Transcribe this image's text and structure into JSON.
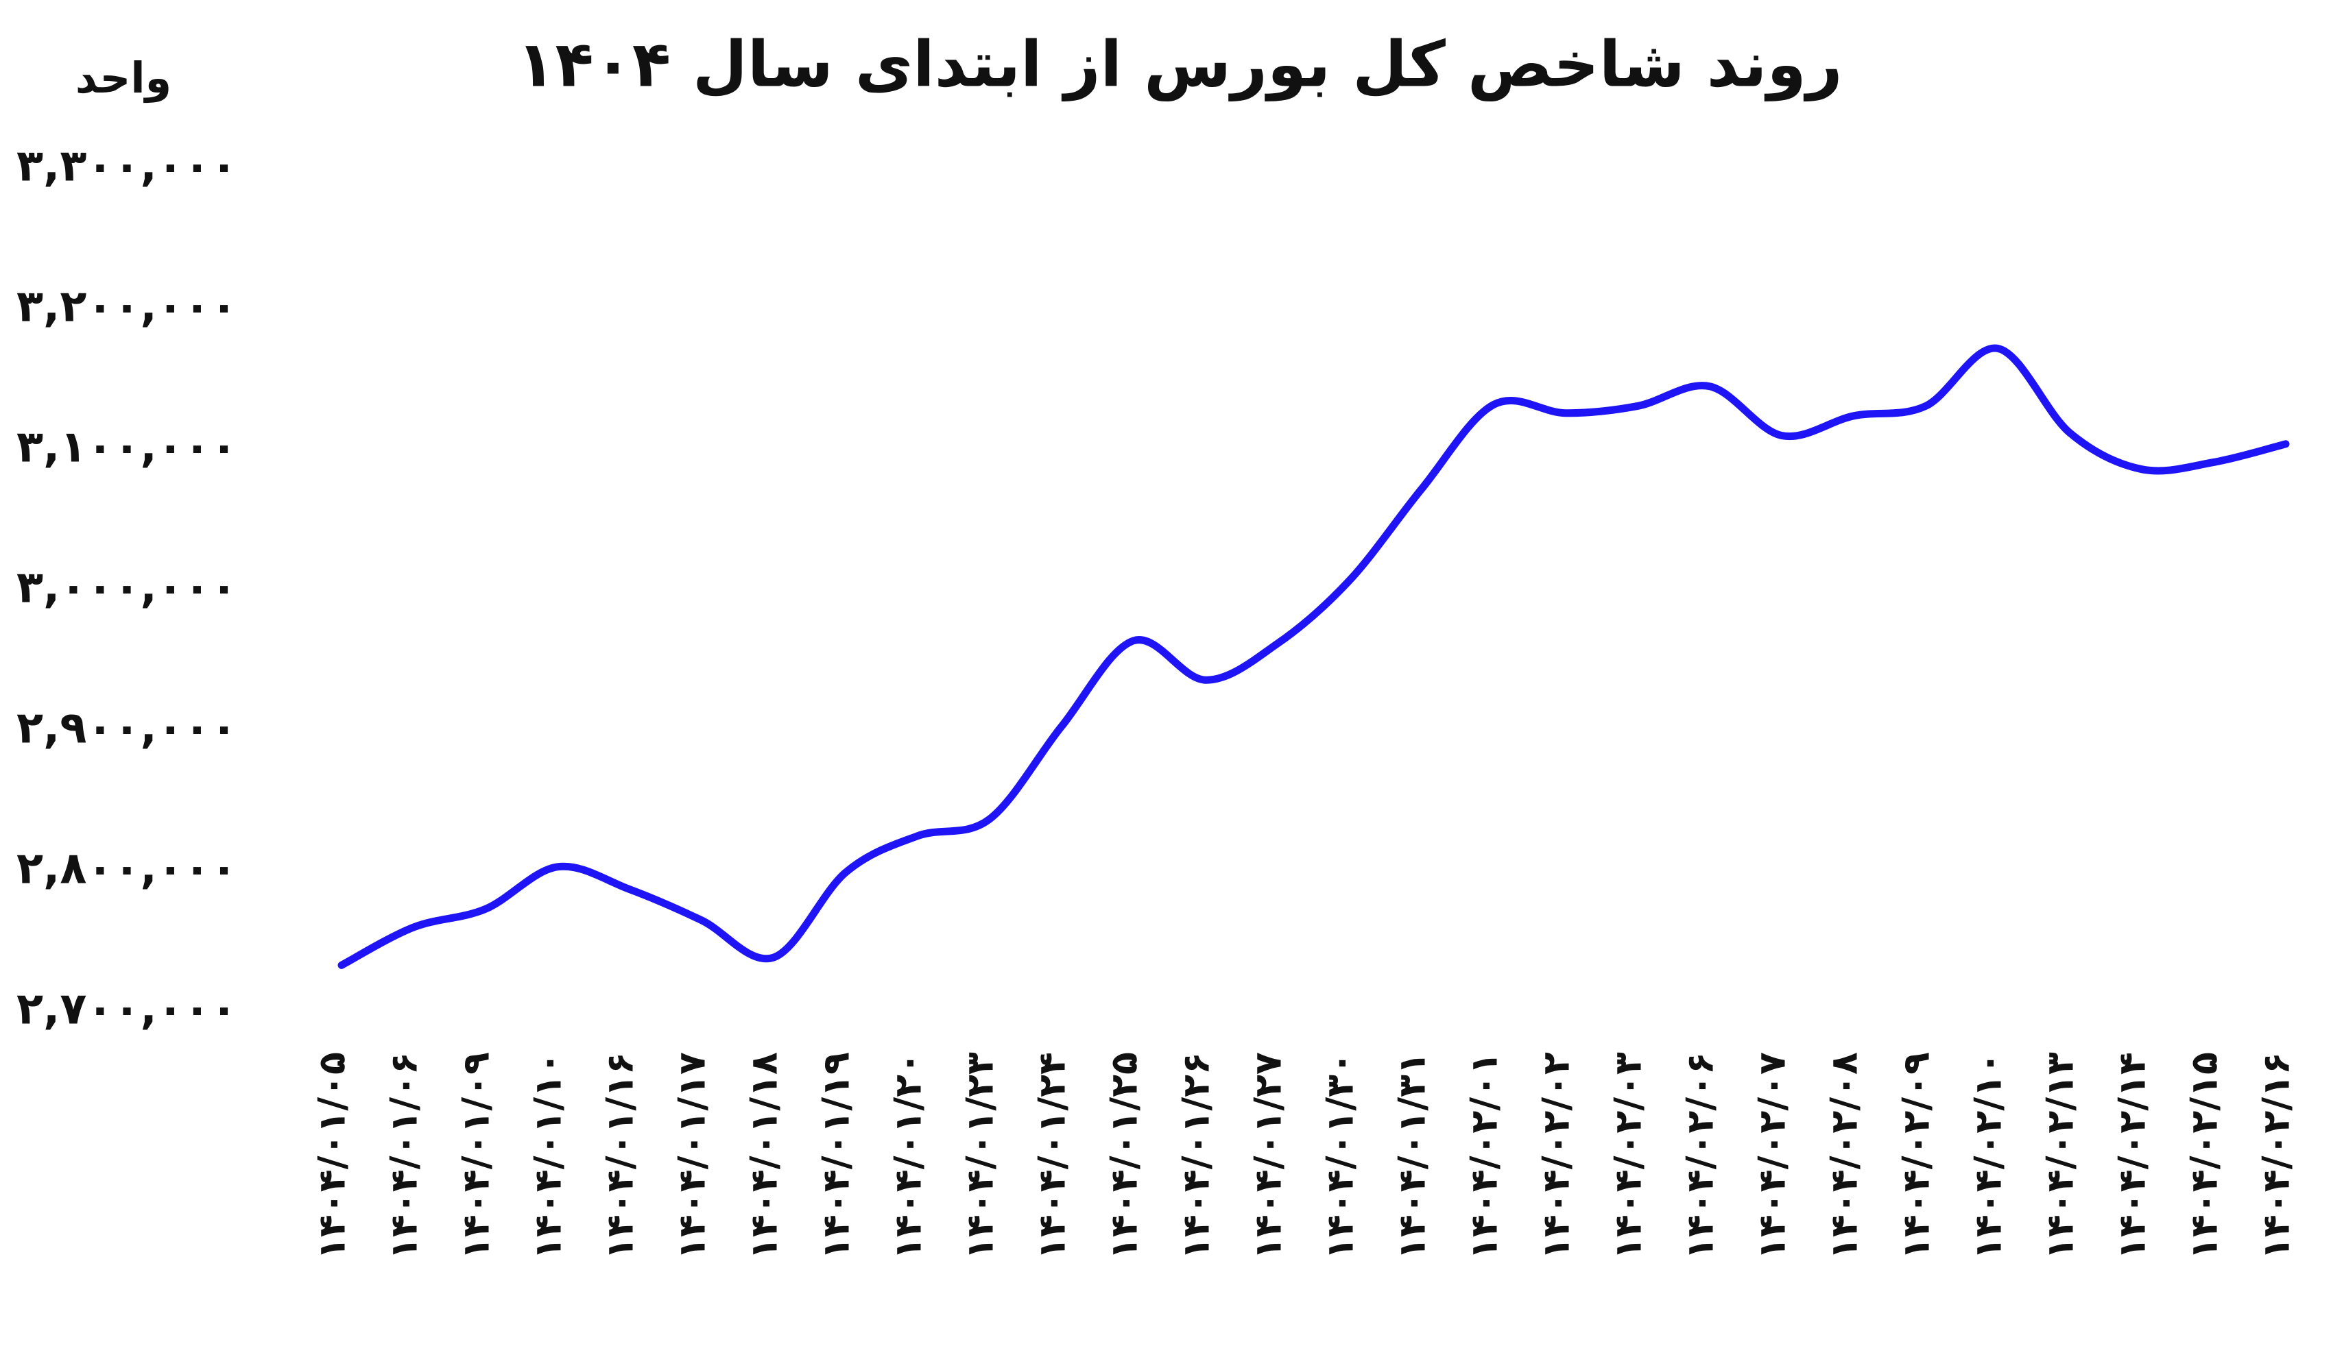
{
  "chart_data": {
    "type": "line",
    "title": "روند شاخص کل بورس از ابتدای سال ۱۴۰۴",
    "y_label": "واحد",
    "categories": [
      "۱۴۰۴/۰۱/۰۵",
      "۱۴۰۴/۰۱/۰۶",
      "۱۴۰۴/۰۱/۰۹",
      "۱۴۰۴/۰۱/۱۰",
      "۱۴۰۴/۰۱/۱۶",
      "۱۴۰۴/۰۱/۱۷",
      "۱۴۰۴/۰۱/۱۸",
      "۱۴۰۴/۰۱/۱۹",
      "۱۴۰۴/۰۱/۲۰",
      "۱۴۰۴/۰۱/۲۳",
      "۱۴۰۴/۰۱/۲۴",
      "۱۴۰۴/۰۱/۲۵",
      "۱۴۰۴/۰۱/۲۶",
      "۱۴۰۴/۰۱/۲۷",
      "۱۴۰۴/۰۱/۳۰",
      "۱۴۰۴/۰۱/۳۱",
      "۱۴۰۴/۰۲/۰۱",
      "۱۴۰۴/۰۲/۰۲",
      "۱۴۰۴/۰۲/۰۳",
      "۱۴۰۴/۰۲/۰۶",
      "۱۴۰۴/۰۲/۰۷",
      "۱۴۰۴/۰۲/۰۸",
      "۱۴۰۴/۰۲/۰۹",
      "۱۴۰۴/۰۲/۱۰",
      "۱۴۰۴/۰۲/۱۳",
      "۱۴۰۴/۰۲/۱۴",
      "۱۴۰۴/۰۲/۱۵",
      "۱۴۰۴/۰۲/۱۶"
    ],
    "values": [
      2733000,
      2760000,
      2773000,
      2803000,
      2787000,
      2765000,
      2738500,
      2799000,
      2825000,
      2837000,
      2903000,
      2964000,
      2936000,
      2962000,
      3007000,
      3072000,
      3132000,
      3126000,
      3131000,
      3145000,
      3110000,
      3124000,
      3131000,
      3172000,
      3112000,
      3086000,
      3091000,
      3104000
    ],
    "color": "#1f14f5",
    "ylim": [
      2700000,
      3300000
    ],
    "yticks": [
      {
        "value": 2700000,
        "label": "۲,۷۰۰,۰۰۰"
      },
      {
        "value": 2800000,
        "label": "۲,۸۰۰,۰۰۰"
      },
      {
        "value": 2900000,
        "label": "۲,۹۰۰,۰۰۰"
      },
      {
        "value": 3000000,
        "label": "۳,۰۰۰,۰۰۰"
      },
      {
        "value": 3100000,
        "label": "۳,۱۰۰,۰۰۰"
      },
      {
        "value": 3200000,
        "label": "۳,۲۰۰,۰۰۰"
      },
      {
        "value": 3300000,
        "label": "۳,۳۰۰,۰۰۰"
      }
    ],
    "grid": false
  }
}
